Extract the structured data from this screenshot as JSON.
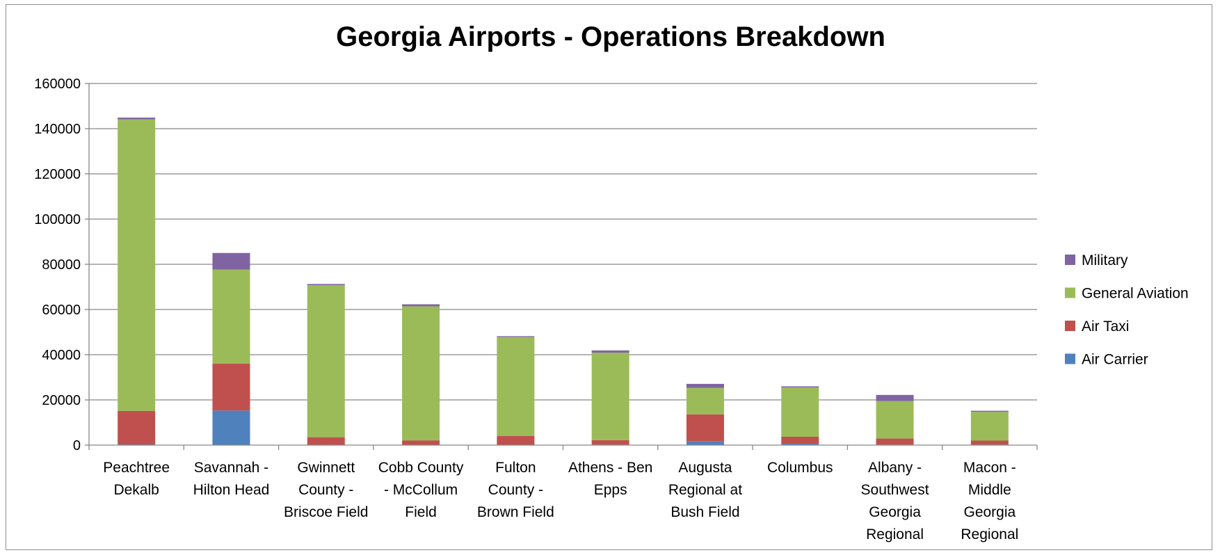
{
  "chart_data": {
    "type": "bar",
    "stacked": true,
    "title": "Georgia Airports - Operations Breakdown",
    "xlabel": "",
    "ylabel": "",
    "ylim": [
      0,
      160000
    ],
    "yticks": [
      0,
      20000,
      40000,
      60000,
      80000,
      100000,
      120000,
      140000,
      160000
    ],
    "grid": true,
    "legend_position": "right",
    "categories": [
      [
        "Peachtree",
        "Dekalb"
      ],
      [
        "Savannah -",
        "Hilton Head"
      ],
      [
        "Gwinnett",
        "County -",
        "Briscoe Field"
      ],
      [
        "Cobb County",
        "- McCollum",
        "Field"
      ],
      [
        "Fulton",
        "County -",
        "Brown Field"
      ],
      [
        "Athens - Ben",
        "Epps"
      ],
      [
        "Augusta",
        "Regional at",
        "Bush Field"
      ],
      [
        "Columbus"
      ],
      [
        "Albany -",
        "Southwest",
        "Georgia",
        "Regional"
      ],
      [
        "Macon -",
        "Middle",
        "Georgia",
        "Regional"
      ]
    ],
    "series": [
      {
        "name": "Air Carrier",
        "color": "#4F81BD",
        "values": [
          300,
          15300,
          100,
          100,
          100,
          200,
          1800,
          600,
          200,
          200
        ]
      },
      {
        "name": "Air Taxi",
        "color": "#C0504D",
        "values": [
          14800,
          20700,
          3400,
          2000,
          4000,
          2000,
          11800,
          3100,
          2700,
          1800
        ]
      },
      {
        "name": "General Aviation",
        "color": "#9BBB59",
        "values": [
          129000,
          41700,
          67300,
          59300,
          43700,
          38700,
          11700,
          21800,
          16600,
          12700
        ]
      },
      {
        "name": "Military",
        "color": "#8064A2",
        "values": [
          800,
          7300,
          500,
          900,
          400,
          1000,
          1800,
          500,
          2700,
          500
        ]
      }
    ]
  }
}
